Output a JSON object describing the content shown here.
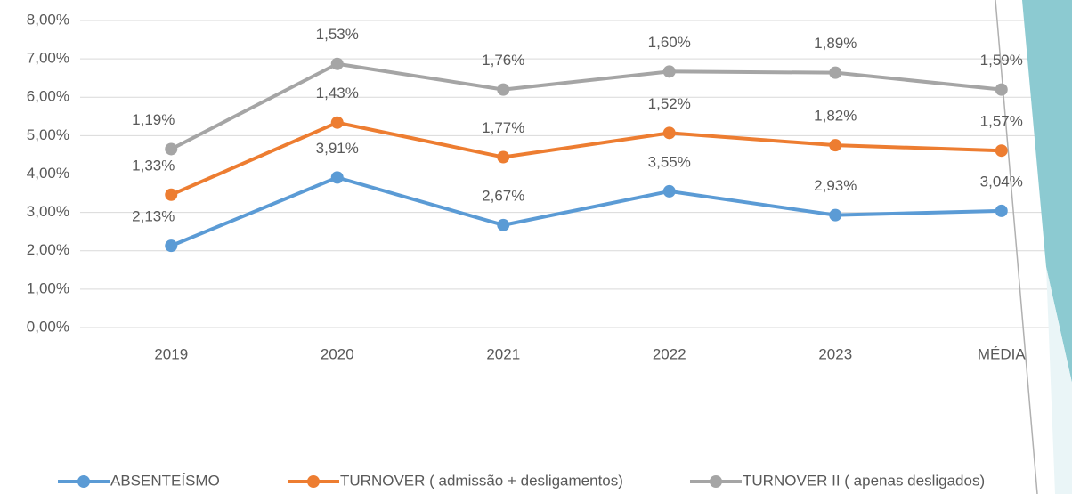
{
  "chart_data": {
    "type": "line",
    "stacked": true,
    "categories": [
      "2019",
      "2020",
      "2021",
      "2022",
      "2023",
      "MÉDIA"
    ],
    "series": [
      {
        "name": "ABSENTEÍSMO",
        "color": "#5b9bd5",
        "values": [
          2.13,
          3.91,
          2.67,
          3.55,
          2.93,
          3.04
        ],
        "value_labels": [
          "2,13%",
          "3,91%",
          "2,67%",
          "3,55%",
          "2,93%",
          "3,04%"
        ]
      },
      {
        "name": "TURNOVER ( admissão + desligamentos)",
        "color": "#ed7d31",
        "values": [
          1.33,
          1.43,
          1.77,
          1.52,
          1.82,
          1.57
        ],
        "value_labels": [
          "1,33%",
          "1,43%",
          "1,77%",
          "1,52%",
          "1,82%",
          "1,57%"
        ]
      },
      {
        "name": "TURNOVER II ( apenas desligados)",
        "color": "#a5a5a5",
        "values": [
          1.19,
          1.53,
          1.76,
          1.6,
          1.89,
          1.59
        ],
        "value_labels": [
          "1,19%",
          "1,53%",
          "1,76%",
          "1,60%",
          "1,89%",
          "1,59%"
        ]
      }
    ],
    "ylim": [
      0,
      8
    ],
    "yticks": [
      {
        "value": 0,
        "label": "0,00%"
      },
      {
        "value": 1,
        "label": "1,00%"
      },
      {
        "value": 2,
        "label": "2,00%"
      },
      {
        "value": 3,
        "label": "3,00%"
      },
      {
        "value": 4,
        "label": "4,00%"
      },
      {
        "value": 5,
        "label": "5,00%"
      },
      {
        "value": 6,
        "label": "6,00%"
      },
      {
        "value": 7,
        "label": "7,00%"
      },
      {
        "value": 8,
        "label": "8,00%"
      }
    ],
    "grid": true,
    "legend": "bottom"
  }
}
